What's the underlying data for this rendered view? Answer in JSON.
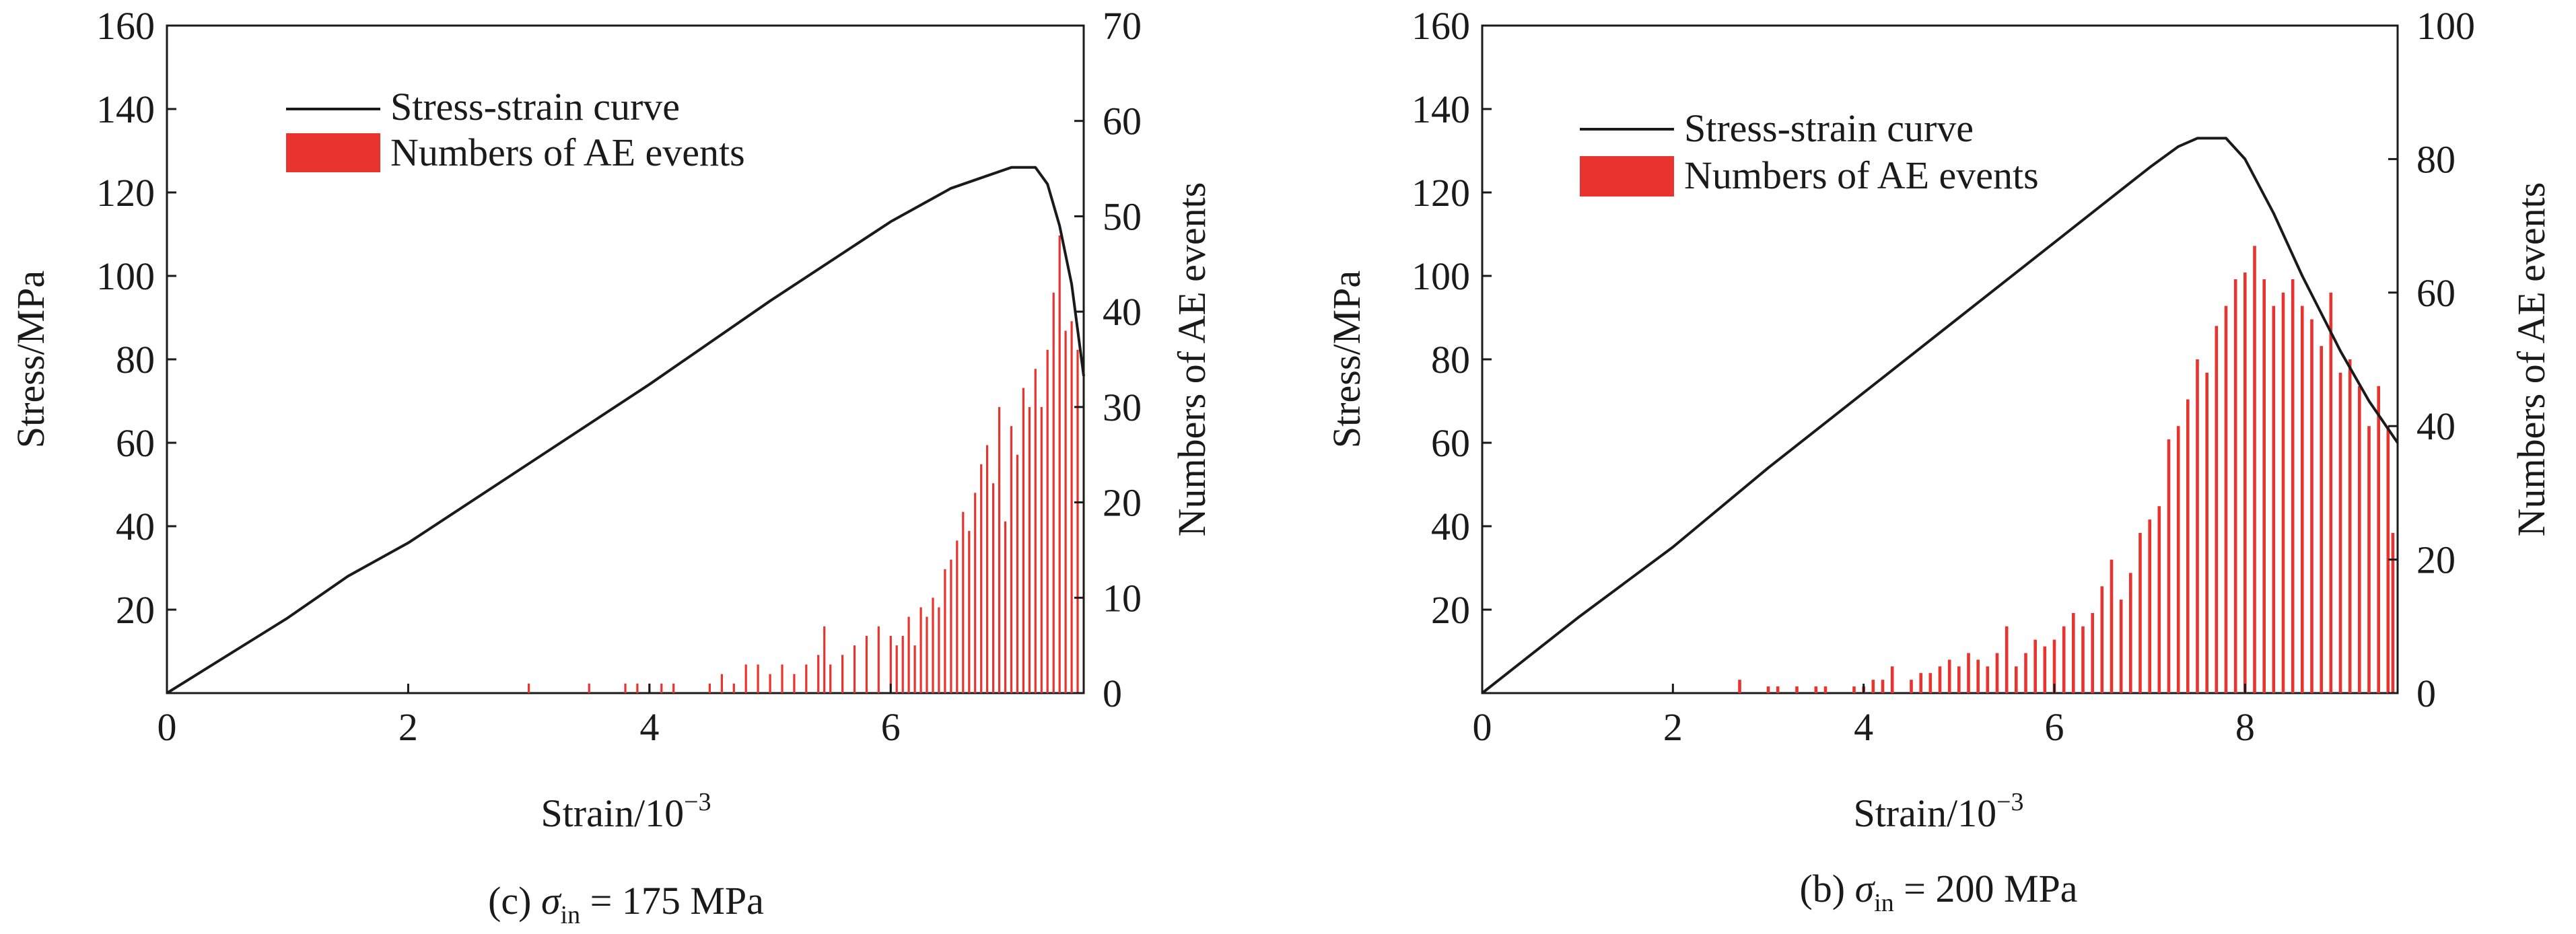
{
  "colors": {
    "curve": "#1a1a1a",
    "bars": "#e8332e",
    "axis": "#1a1a1a"
  },
  "chart_data": [
    {
      "type": "bar+line",
      "caption_prefix": "(c) ",
      "caption_symbol": "σ",
      "caption_sub": "in",
      "caption_suffix": " = 175 MPa",
      "xlabel": "Strain/10",
      "xlabel_sup": "−3",
      "ylabel": "Stress/MPa",
      "y2label": "Numbers of AE events",
      "xlim": [
        0,
        7.6
      ],
      "ylim": [
        0,
        160
      ],
      "y2lim": [
        0,
        70
      ],
      "xticks": [
        "0",
        "2",
        "4",
        "6"
      ],
      "xtick_values": [
        0,
        2,
        4,
        6
      ],
      "yticks": [
        "20",
        "40",
        "60",
        "80",
        "100",
        "120",
        "140",
        "160"
      ],
      "ytick_values": [
        20,
        40,
        60,
        80,
        100,
        120,
        140,
        160
      ],
      "y2ticks": [
        "0",
        "10",
        "20",
        "30",
        "40",
        "50",
        "60",
        "70"
      ],
      "y2tick_values": [
        0,
        10,
        20,
        30,
        40,
        50,
        60,
        70
      ],
      "legend": {
        "placement": "top-left",
        "line_label": "Stress-strain curve",
        "bar_label": "Numbers of AE events"
      },
      "series": [
        {
          "name": "Stress-strain curve",
          "kind": "line",
          "x": [
            0,
            0.5,
            1.0,
            1.5,
            2.0,
            3.0,
            4.0,
            5.0,
            6.0,
            6.5,
            6.8,
            7.0,
            7.2,
            7.3,
            7.4,
            7.5,
            7.6
          ],
          "y": [
            0,
            9,
            18,
            28,
            36,
            55,
            74,
            94,
            113,
            121,
            124,
            126,
            126,
            122,
            112,
            98,
            76
          ]
        },
        {
          "name": "Numbers of AE events",
          "kind": "bar",
          "x": [
            3.0,
            3.5,
            3.8,
            3.9,
            4.0,
            4.1,
            4.2,
            4.5,
            4.6,
            4.7,
            4.8,
            4.9,
            5.0,
            5.1,
            5.2,
            5.3,
            5.4,
            5.45,
            5.5,
            5.6,
            5.7,
            5.8,
            5.9,
            6.0,
            6.05,
            6.1,
            6.15,
            6.2,
            6.25,
            6.3,
            6.35,
            6.4,
            6.45,
            6.5,
            6.55,
            6.6,
            6.65,
            6.7,
            6.75,
            6.8,
            6.85,
            6.9,
            6.95,
            7.0,
            7.05,
            7.1,
            7.15,
            7.2,
            7.25,
            7.3,
            7.35,
            7.4,
            7.45,
            7.5,
            7.55
          ],
          "y": [
            1,
            1,
            1,
            1,
            1,
            1,
            1,
            1,
            2,
            1,
            3,
            3,
            2,
            3,
            2,
            3,
            4,
            7,
            3,
            4,
            5,
            6,
            7,
            6,
            5,
            6,
            8,
            5,
            9,
            8,
            10,
            9,
            13,
            14,
            16,
            19,
            17,
            21,
            24,
            26,
            22,
            30,
            18,
            28,
            25,
            32,
            30,
            34,
            30,
            36,
            42,
            48,
            38,
            39,
            36
          ]
        }
      ]
    },
    {
      "type": "bar+line",
      "caption_prefix": "(b) ",
      "caption_symbol": "σ",
      "caption_sub": "in",
      "caption_suffix": " = 200 MPa",
      "xlabel": "Strain/10",
      "xlabel_sup": "−3",
      "ylabel": "Stress/MPa",
      "y2label": "Numbers of AE events",
      "xlim": [
        0,
        9.6
      ],
      "ylim": [
        0,
        160
      ],
      "y2lim": [
        0,
        100
      ],
      "xticks": [
        "0",
        "2",
        "4",
        "6",
        "8"
      ],
      "xtick_values": [
        0,
        2,
        4,
        6,
        8
      ],
      "yticks": [
        "20",
        "40",
        "60",
        "80",
        "100",
        "120",
        "140",
        "160"
      ],
      "ytick_values": [
        20,
        40,
        60,
        80,
        100,
        120,
        140,
        160
      ],
      "y2ticks": [
        "0",
        "20",
        "40",
        "60",
        "80",
        "100"
      ],
      "y2tick_values": [
        0,
        20,
        40,
        60,
        80,
        100
      ],
      "legend": {
        "placement": "top-left",
        "line_label": "Stress-strain curve",
        "bar_label": "Numbers of AE events"
      },
      "series": [
        {
          "name": "Stress-strain curve",
          "kind": "line",
          "x": [
            0,
            0.5,
            1.0,
            2.0,
            3.0,
            4.0,
            5.0,
            6.0,
            6.5,
            7.0,
            7.3,
            7.5,
            7.8,
            8.0,
            8.3,
            8.6,
            9.0,
            9.3,
            9.6
          ],
          "y": [
            0,
            9,
            18,
            35,
            54,
            72,
            90,
            108,
            117,
            126,
            131,
            133,
            133,
            128,
            115,
            100,
            82,
            70,
            60
          ]
        },
        {
          "name": "Numbers of AE events",
          "kind": "bar",
          "x": [
            2.7,
            3.0,
            3.1,
            3.3,
            3.5,
            3.6,
            3.9,
            4.0,
            4.1,
            4.2,
            4.3,
            4.5,
            4.6,
            4.7,
            4.8,
            4.9,
            5.0,
            5.1,
            5.2,
            5.3,
            5.4,
            5.5,
            5.6,
            5.7,
            5.8,
            5.9,
            6.0,
            6.1,
            6.2,
            6.3,
            6.4,
            6.5,
            6.6,
            6.7,
            6.8,
            6.9,
            7.0,
            7.1,
            7.2,
            7.3,
            7.4,
            7.5,
            7.6,
            7.7,
            7.8,
            7.9,
            8.0,
            8.1,
            8.2,
            8.3,
            8.4,
            8.5,
            8.6,
            8.7,
            8.8,
            8.9,
            9.0,
            9.1,
            9.2,
            9.3,
            9.4,
            9.5,
            9.55
          ],
          "y": [
            2,
            1,
            1,
            1,
            1,
            1,
            1,
            1,
            2,
            2,
            4,
            2,
            3,
            3,
            4,
            5,
            4,
            6,
            5,
            4,
            6,
            10,
            4,
            6,
            8,
            7,
            8,
            10,
            12,
            10,
            12,
            16,
            20,
            14,
            18,
            24,
            26,
            28,
            38,
            40,
            44,
            50,
            48,
            55,
            58,
            62,
            63,
            67,
            62,
            58,
            60,
            62,
            58,
            56,
            52,
            60,
            48,
            50,
            46,
            40,
            46,
            40,
            24
          ]
        }
      ]
    }
  ]
}
